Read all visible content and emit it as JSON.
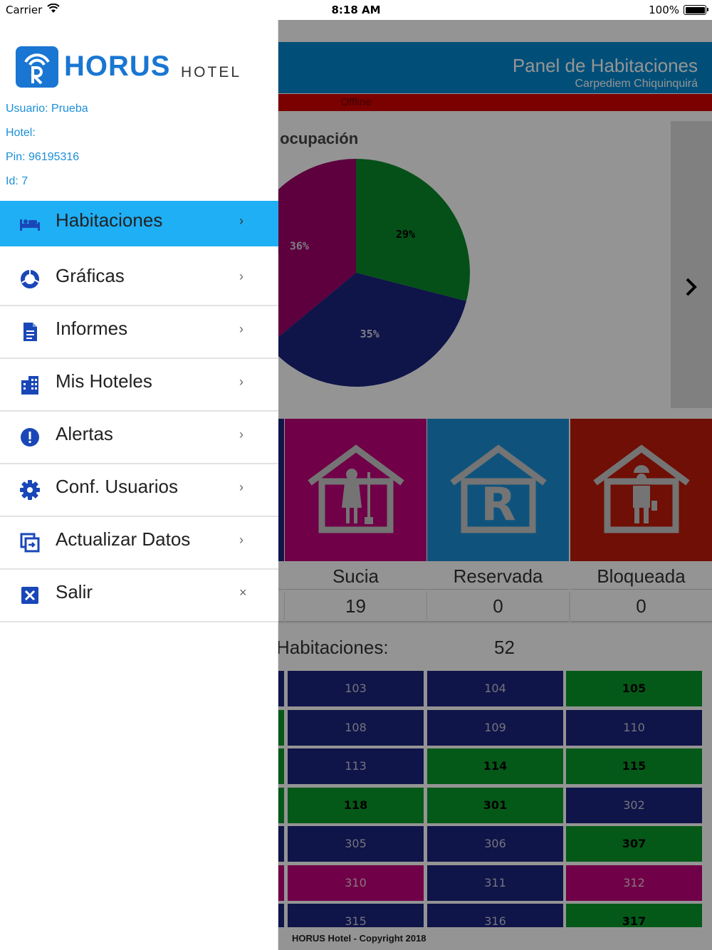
{
  "status_bar": {
    "carrier": "Carrier",
    "time": "8:18 AM",
    "battery": "100%"
  },
  "header": {
    "title": "Panel de Habitaciones",
    "subtitle": "Carpediem Chiquinquirá"
  },
  "connection": {
    "status": "Offline"
  },
  "stats": {
    "title": "Estadísticas de ocupación"
  },
  "chart_data": {
    "type": "pie",
    "title": "",
    "slices": [
      {
        "label": "29%",
        "value": 29,
        "color": "#0a8a2a"
      },
      {
        "label": "35%",
        "value": 35,
        "color": "#1a237e"
      },
      {
        "label": "36%",
        "value": 36,
        "color": "#a0006a"
      }
    ]
  },
  "status_tiles": [
    {
      "label": "Sucia",
      "count": "19",
      "color": "#c2007b",
      "icon": "cleaning-house-icon"
    },
    {
      "label": "Reservada",
      "count": "0",
      "color": "#1a8fd8",
      "icon": "reserved-house-icon"
    },
    {
      "label": "Bloqueada",
      "count": "0",
      "color": "#c01a0a",
      "icon": "maintenance-house-icon"
    }
  ],
  "totals": {
    "label": "Habitaciones:",
    "value": "52"
  },
  "rooms": [
    [
      "103",
      "104",
      "105"
    ],
    [
      "108",
      "109",
      "110"
    ],
    [
      "113",
      "114",
      "115"
    ],
    [
      "118",
      "301",
      "302"
    ],
    [
      "305",
      "306",
      "307"
    ],
    [
      "310",
      "311",
      "312"
    ],
    [
      "315",
      "316",
      "317"
    ]
  ],
  "room_states": [
    [
      "occ",
      "occ",
      "free"
    ],
    [
      "occ",
      "occ",
      "occ"
    ],
    [
      "occ",
      "free",
      "free"
    ],
    [
      "free",
      "free",
      "occ"
    ],
    [
      "occ",
      "occ",
      "free"
    ],
    [
      "dirty",
      "occ",
      "dirty"
    ],
    [
      "occ",
      "occ",
      "free"
    ]
  ],
  "left_edge_states": [
    "occ",
    "free",
    "free",
    "free",
    "occ",
    "dirty",
    "occ"
  ],
  "footer": {
    "copyright": "HORUS Hotel - Copyright 2018"
  },
  "drawer": {
    "logo_word": "HORUS",
    "logo_sub": "HOTEL",
    "user": {
      "usuario": "Usuario: Prueba",
      "hotel": "Hotel:",
      "pin": "Pin: 96195316",
      "id": "Id: 7"
    },
    "menu": [
      {
        "label": "Habitaciones",
        "icon": "bed-icon",
        "action": "›"
      },
      {
        "label": "Gráficas",
        "icon": "donut-chart-icon",
        "action": "›"
      },
      {
        "label": "Informes",
        "icon": "document-icon",
        "action": "›"
      },
      {
        "label": "Mis Hoteles",
        "icon": "building-icon",
        "action": "›"
      },
      {
        "label": "Alertas",
        "icon": "alert-icon",
        "action": "›"
      },
      {
        "label": "Conf. Usuarios",
        "icon": "gear-icon",
        "action": "›"
      },
      {
        "label": "Actualizar Datos",
        "icon": "sync-icon",
        "action": "›"
      },
      {
        "label": "Salir",
        "icon": "exit-icon",
        "action": "×"
      }
    ]
  }
}
